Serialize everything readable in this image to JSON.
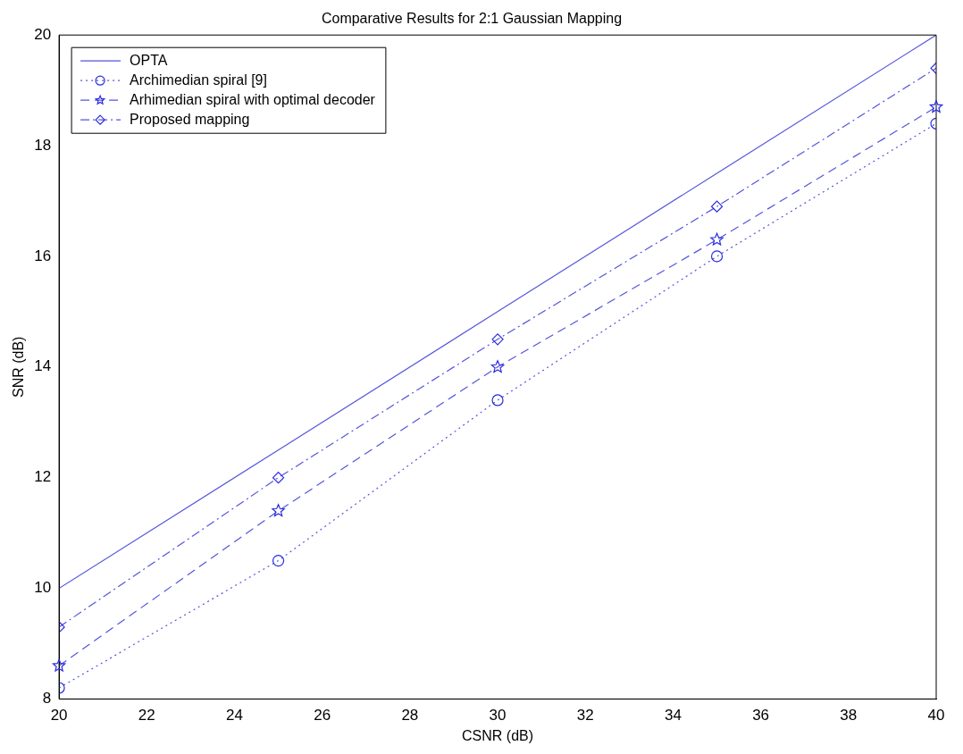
{
  "chart_data": {
    "type": "line",
    "title": "Comparative Results for 2:1 Gaussian Mapping",
    "xlabel": "CSNR (dB)",
    "ylabel": "SNR (dB)",
    "x": [
      20,
      25,
      30,
      35,
      40
    ],
    "series": [
      {
        "name": "OPTA",
        "color": "#5555dd",
        "values": [
          10,
          12.5,
          15,
          17.5,
          20
        ],
        "marker": "none",
        "line_style": "solid"
      },
      {
        "name": "Archimedian spiral [9]",
        "color": "#5555dd",
        "values": [
          8.2,
          10.5,
          13.4,
          16.0,
          18.4
        ],
        "marker": "circle",
        "line_style": "dotted"
      },
      {
        "name": "Arhimedian spiral with optimal decoder",
        "color": "#5555dd",
        "values": [
          8.6,
          11.4,
          14.0,
          16.3,
          18.7
        ],
        "marker": "star",
        "line_style": "dashed"
      },
      {
        "name": "Proposed mapping",
        "color": "#5555dd",
        "values": [
          9.3,
          12.0,
          14.5,
          16.9,
          19.4
        ],
        "marker": "diamond",
        "line_style": "dashdot"
      }
    ],
    "xlim": [
      20,
      40
    ],
    "xticks": [
      20,
      22,
      24,
      26,
      28,
      30,
      32,
      34,
      36,
      38,
      40
    ],
    "ylim": [
      8,
      20
    ],
    "yticks": [
      8,
      10,
      12,
      14,
      16,
      18,
      20
    ],
    "grid": false,
    "legend": "top left"
  }
}
